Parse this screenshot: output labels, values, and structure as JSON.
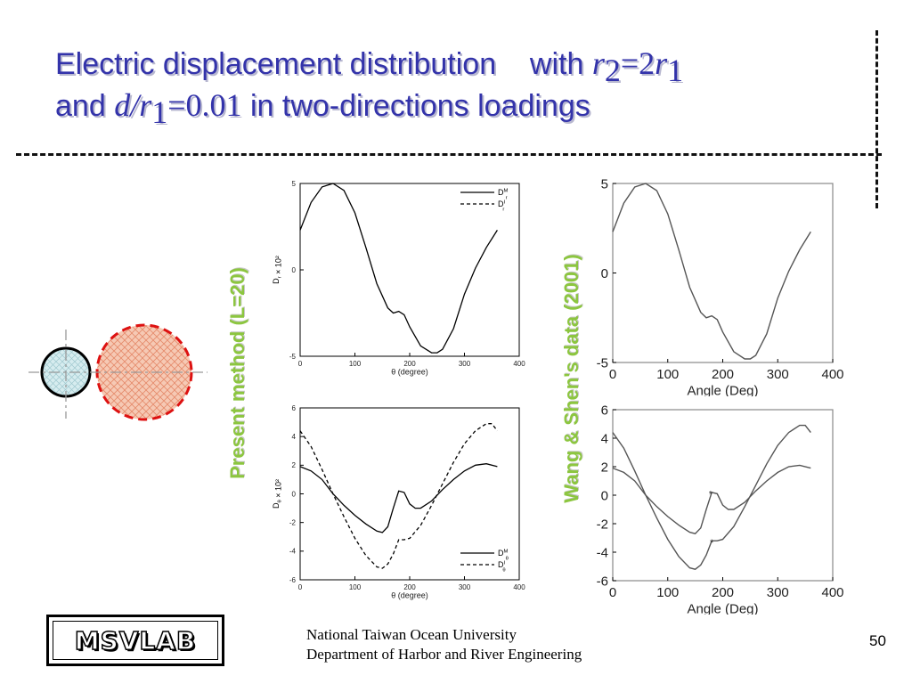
{
  "slide": {
    "title_line1_a": "Electric displacement distribution",
    "title_line1_b": "with",
    "title_line2_a": "and",
    "title_line2_b": "in two-directions loadings",
    "math_r": "r",
    "math_sub1": "1",
    "math_sub2": "2",
    "math_eq_2": "=2",
    "math_d_over": "d/",
    "math_eq_001": "=0.01",
    "label_present": "Present method (L=20)",
    "label_wang": "Wang & Shen's data (2001)",
    "logo_text": "MSVLAB",
    "footer_line1": "National Taiwan Ocean University",
    "footer_line2": "Department of Harbor and River Engineering",
    "page_number": "50"
  },
  "colors": {
    "title": "#3333aa",
    "label_green": "#8cc63f",
    "inclusion_red": "#dd1111",
    "inclusion_fill": "#f6c9b4",
    "hole_fill": "#d6ecef"
  },
  "diagram": {
    "icons": [
      "small-circle-inclusion",
      "large-dashed-circle-inclusion",
      "crosshair-axes"
    ]
  },
  "chart_data": [
    {
      "id": "present-r",
      "type": "line",
      "xlabel": "θ (degree)",
      "ylabel": "D_r × 10²",
      "xlim": [
        0,
        400
      ],
      "ylim": [
        -5,
        5
      ],
      "xticks": [
        "0",
        "100",
        "200",
        "300",
        "400"
      ],
      "yticks": [
        "-5",
        "0",
        "5"
      ],
      "legend": [
        "D_r^M",
        "D_r^I"
      ],
      "legend_position": "top-right",
      "series": [
        {
          "name": "D_r^M",
          "style": "solid",
          "x": [
            0,
            20,
            40,
            60,
            80,
            100,
            120,
            140,
            160,
            170,
            180,
            190,
            200,
            220,
            240,
            250,
            260,
            280,
            300,
            320,
            340,
            360
          ],
          "y": [
            2.3,
            3.9,
            4.8,
            5.0,
            4.6,
            3.3,
            1.3,
            -0.8,
            -2.2,
            -2.5,
            -2.4,
            -2.6,
            -3.3,
            -4.4,
            -4.8,
            -4.8,
            -4.6,
            -3.4,
            -1.4,
            0.1,
            1.3,
            2.3
          ]
        }
      ]
    },
    {
      "id": "present-theta",
      "type": "line",
      "xlabel": "θ (degree)",
      "ylabel": "D_θ × 10²",
      "xlim": [
        0,
        400
      ],
      "ylim": [
        -6,
        6
      ],
      "xticks": [
        "0",
        "100",
        "200",
        "300",
        "400"
      ],
      "yticks": [
        "-6",
        "-4",
        "-2",
        "0",
        "2",
        "4",
        "6"
      ],
      "legend": [
        "D_θ^M",
        "D_θ^I"
      ],
      "legend_position": "bottom-right",
      "series": [
        {
          "name": "D_θ^M",
          "style": "solid",
          "x": [
            0,
            20,
            40,
            60,
            80,
            100,
            120,
            140,
            150,
            160,
            170,
            180,
            190,
            200,
            210,
            220,
            240,
            260,
            280,
            300,
            320,
            340,
            360
          ],
          "y": [
            1.9,
            1.6,
            1.0,
            0.0,
            -0.8,
            -1.5,
            -2.1,
            -2.6,
            -2.7,
            -2.3,
            -1.0,
            0.2,
            0.1,
            -0.7,
            -1.0,
            -1.0,
            -0.5,
            0.3,
            1.0,
            1.6,
            2.0,
            2.1,
            1.9
          ]
        },
        {
          "name": "D_θ^I",
          "style": "dashed",
          "x": [
            0,
            20,
            40,
            60,
            80,
            100,
            120,
            140,
            150,
            160,
            170,
            180,
            190,
            200,
            220,
            240,
            260,
            280,
            300,
            320,
            340,
            350,
            360
          ],
          "y": [
            4.4,
            3.3,
            1.7,
            0.0,
            -1.6,
            -3.1,
            -4.3,
            -5.1,
            -5.2,
            -4.9,
            -4.2,
            -3.2,
            -3.2,
            -3.1,
            -2.2,
            -0.8,
            0.7,
            2.2,
            3.5,
            4.4,
            4.9,
            4.9,
            4.4
          ]
        }
      ]
    },
    {
      "id": "wang-r",
      "type": "line",
      "xlabel": "Angle (Deg)",
      "ylabel": "",
      "xlim": [
        0,
        400
      ],
      "ylim": [
        -5,
        5
      ],
      "xticks": [
        "0",
        "100",
        "200",
        "300",
        "400"
      ],
      "yticks": [
        "-5",
        "0",
        "5"
      ],
      "series": [
        {
          "style": "solid",
          "x": [
            0,
            20,
            40,
            60,
            80,
            100,
            120,
            140,
            160,
            170,
            180,
            190,
            200,
            220,
            240,
            250,
            260,
            280,
            300,
            320,
            340,
            360
          ],
          "y": [
            2.3,
            3.9,
            4.8,
            5.0,
            4.6,
            3.3,
            1.3,
            -0.8,
            -2.2,
            -2.5,
            -2.4,
            -2.6,
            -3.3,
            -4.4,
            -4.8,
            -4.8,
            -4.6,
            -3.4,
            -1.4,
            0.1,
            1.3,
            2.3
          ]
        }
      ]
    },
    {
      "id": "wang-theta",
      "type": "line",
      "xlabel": "Angle (Deg)",
      "ylabel": "",
      "xlim": [
        0,
        400
      ],
      "ylim": [
        -6,
        6
      ],
      "xticks": [
        "0",
        "100",
        "200",
        "300",
        "400"
      ],
      "yticks": [
        "-6",
        "-4",
        "-2",
        "0",
        "2",
        "4",
        "6"
      ],
      "series": [
        {
          "style": "solid",
          "x": [
            0,
            20,
            40,
            60,
            80,
            100,
            120,
            140,
            150,
            160,
            170,
            180,
            190,
            200,
            210,
            220,
            240,
            260,
            280,
            300,
            320,
            340,
            360
          ],
          "y": [
            1.9,
            1.6,
            1.0,
            0.0,
            -0.8,
            -1.5,
            -2.1,
            -2.6,
            -2.7,
            -2.3,
            -1.0,
            0.2,
            0.1,
            -0.7,
            -1.0,
            -1.0,
            -0.5,
            0.3,
            1.0,
            1.6,
            2.0,
            2.1,
            1.9
          ]
        },
        {
          "style": "solid",
          "x": [
            0,
            20,
            40,
            60,
            80,
            100,
            120,
            140,
            150,
            160,
            170,
            180,
            190,
            200,
            220,
            240,
            260,
            280,
            300,
            320,
            340,
            350,
            360
          ],
          "y": [
            4.4,
            3.3,
            1.7,
            0.0,
            -1.6,
            -3.1,
            -4.3,
            -5.1,
            -5.2,
            -4.9,
            -4.2,
            -3.2,
            -3.2,
            -3.1,
            -2.2,
            -0.8,
            0.7,
            2.2,
            3.5,
            4.4,
            4.9,
            4.9,
            4.4
          ]
        }
      ]
    }
  ]
}
